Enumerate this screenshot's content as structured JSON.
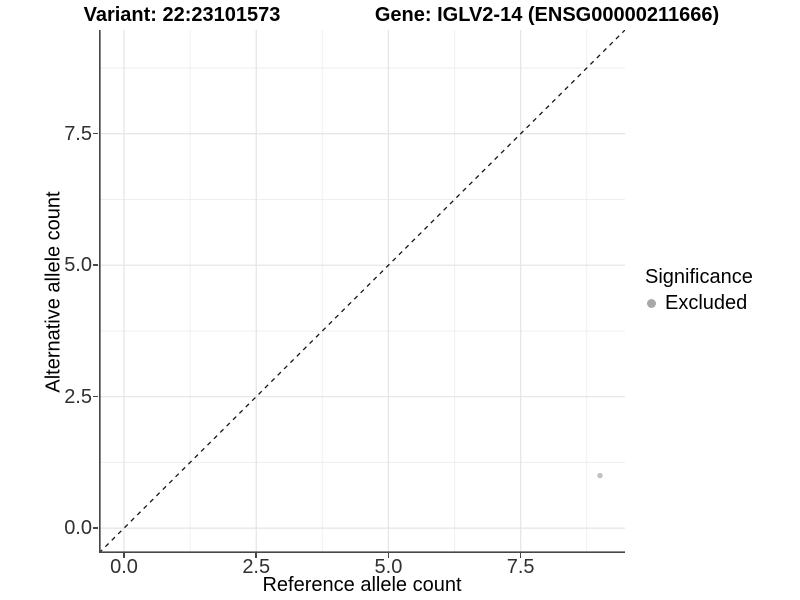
{
  "figure": {
    "title_left": "Variant: 22:23101573",
    "title_right": "Gene: IGLV2-14 (ENSG00000211666)"
  },
  "chart_data": {
    "type": "scatter",
    "title": "Variant: 22:23101573 / Gene: IGLV2-14 (ENSG00000211666)",
    "xlabel": "Reference allele count",
    "ylabel": "Alternative allele count",
    "xlim": [
      -0.473,
      9.473
    ],
    "ylim": [
      -0.473,
      9.473
    ],
    "x_ticks": {
      "values": [
        0,
        2.5,
        5,
        7.5
      ],
      "labels": [
        "0.0",
        "2.5",
        "5.0",
        "7.5"
      ]
    },
    "y_ticks": {
      "values": [
        0,
        2.5,
        5,
        7.5
      ],
      "labels": [
        "0.0",
        "2.5",
        "5.0",
        "7.5"
      ]
    },
    "minor_tick_values": [
      1.25,
      3.75,
      6.25,
      8.75
    ],
    "grid": {
      "shown": true,
      "major_color": "#e4e4e4",
      "minor_color": "#efefef"
    },
    "reference_line": {
      "type": "identity",
      "slope": 1,
      "intercept": 0,
      "style": "dashed",
      "color": "#141414"
    },
    "series": [
      {
        "name": "Excluded",
        "color": "#adadad",
        "point_opacity": 0.75,
        "point_radius": 2.7,
        "points": [
          {
            "x": 9,
            "y": 1
          }
        ]
      }
    ],
    "legend": {
      "title": "Significance",
      "position": "right",
      "items": [
        {
          "label": "Excluded",
          "color": "#a8a8a8"
        }
      ]
    },
    "axis_line_color": "#474747"
  }
}
